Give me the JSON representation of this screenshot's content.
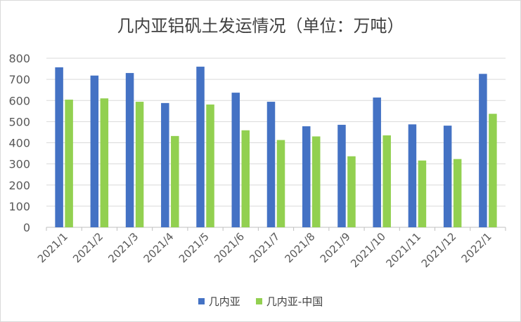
{
  "chart_data": {
    "type": "bar",
    "title": "几内亚铝矾土发运情况（单位：万吨）",
    "categories": [
      "2021/1",
      "2021/2",
      "2021/3",
      "2021/4",
      "2021/5",
      "2021/6",
      "2021/7",
      "2021/8",
      "2021/9",
      "2021/10",
      "2021/11",
      "2021/12",
      "2022/1"
    ],
    "series": [
      {
        "name": "几内亚",
        "color": "#4472C4",
        "values": [
          757,
          718,
          730,
          588,
          760,
          637,
          594,
          478,
          485,
          614,
          487,
          481,
          726
        ]
      },
      {
        "name": "几内亚-中国",
        "color": "#92D050",
        "values": [
          604,
          610,
          594,
          432,
          581,
          459,
          413,
          430,
          336,
          435,
          316,
          323,
          537
        ]
      }
    ],
    "ylim": [
      0,
      800
    ],
    "yticks": [
      0,
      100,
      200,
      300,
      400,
      500,
      600,
      700,
      800
    ],
    "grid": true,
    "legend_position": "bottom"
  }
}
